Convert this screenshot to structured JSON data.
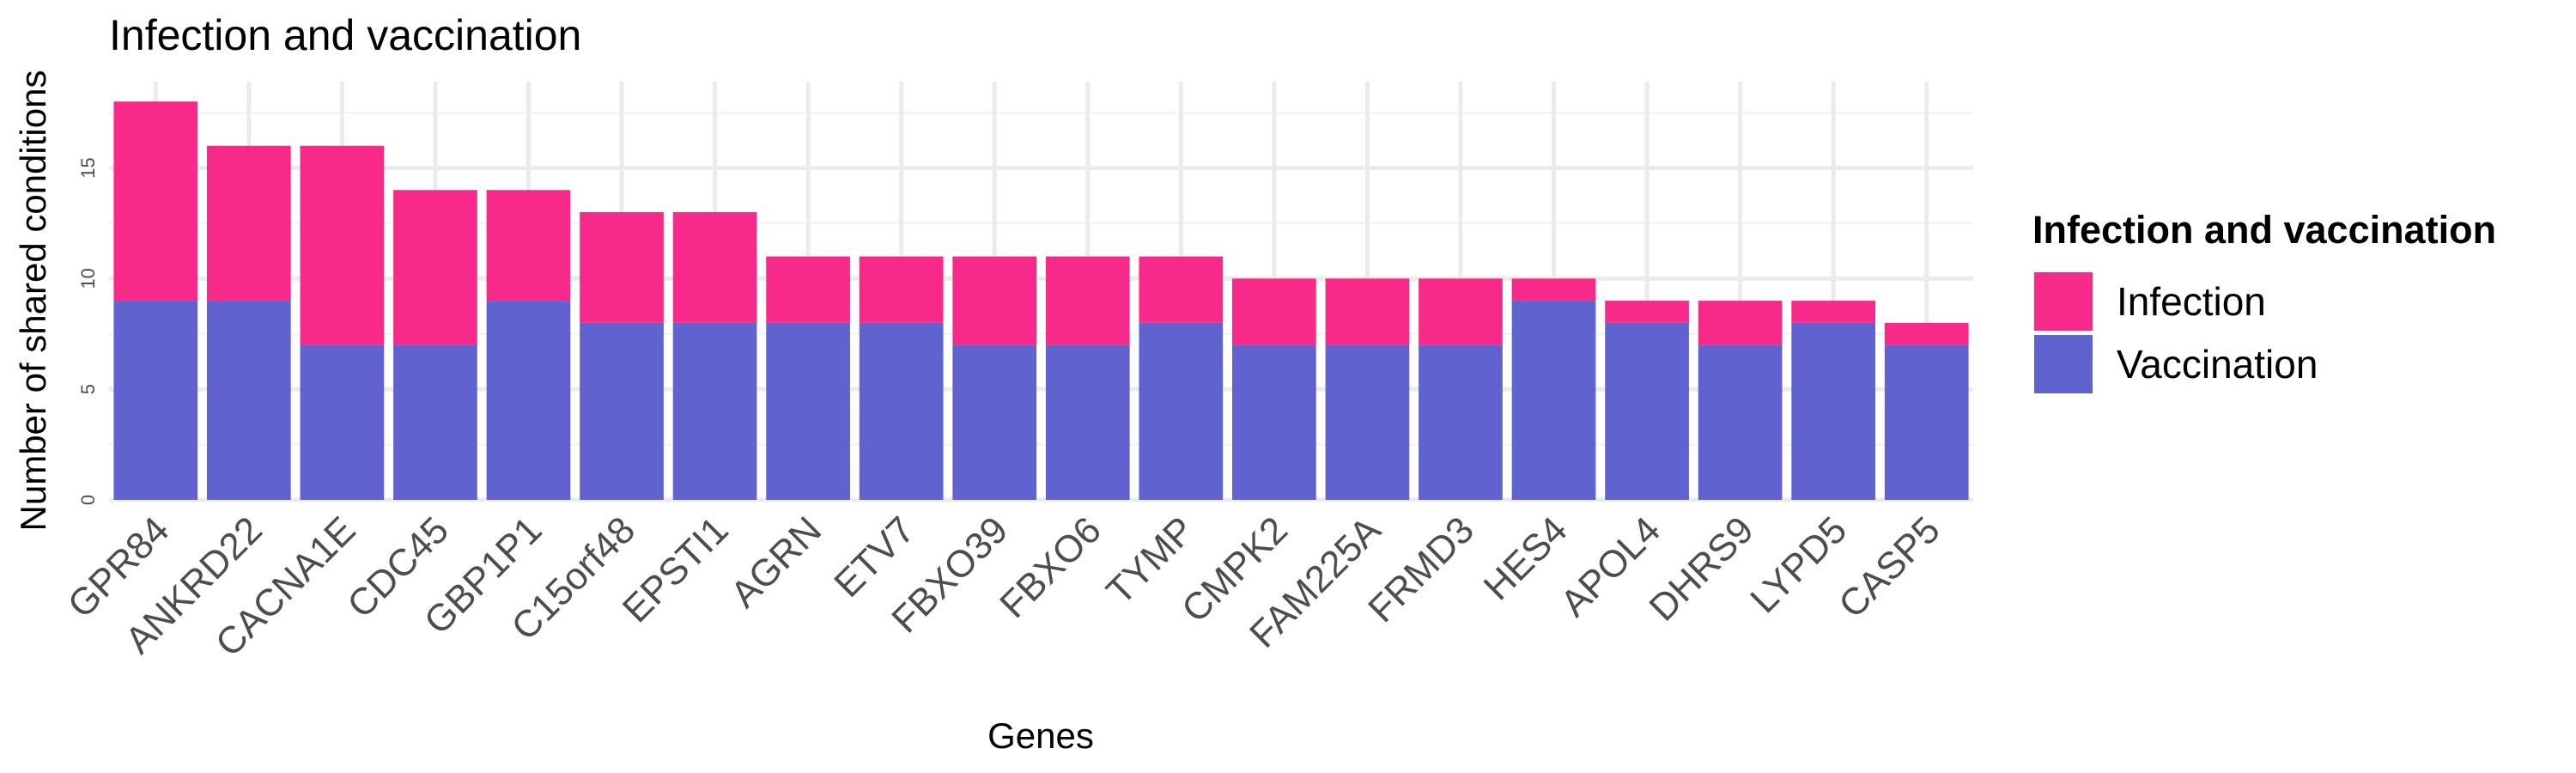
{
  "chart_data": {
    "type": "bar",
    "stacked": true,
    "title": "Infection and vaccination",
    "xlabel": "Genes",
    "ylabel": "Number of shared conditions",
    "categories": [
      "GPR84",
      "ANKRD22",
      "CACNA1E",
      "CDC45",
      "GBP1P1",
      "C15orf48",
      "EPSTI1",
      "AGRN",
      "ETV7",
      "FBXO39",
      "FBXO6",
      "TYMP",
      "CMPK2",
      "FAM225A",
      "FRMD3",
      "HES4",
      "APOL4",
      "DHRS9",
      "LYPD5",
      "CASP5"
    ],
    "series": [
      {
        "name": "Vaccination",
        "color": "#5f62cf",
        "values": [
          9,
          9,
          7,
          7,
          9,
          8,
          8,
          8,
          8,
          7,
          7,
          8,
          7,
          7,
          7,
          9,
          8,
          7,
          8,
          7
        ]
      },
      {
        "name": "Infection",
        "color": "#f72a8a",
        "values": [
          9,
          7,
          9,
          7,
          5,
          5,
          5,
          3,
          3,
          4,
          4,
          3,
          3,
          3,
          3,
          1,
          1,
          2,
          1,
          1
        ]
      }
    ],
    "ylim": [
      0,
      18.9
    ],
    "yticks": [
      0,
      5,
      10,
      15
    ],
    "grid": true,
    "legend": {
      "title": "Infection and vaccination",
      "placement": "right",
      "entries": [
        "Infection",
        "Vaccination"
      ]
    }
  }
}
